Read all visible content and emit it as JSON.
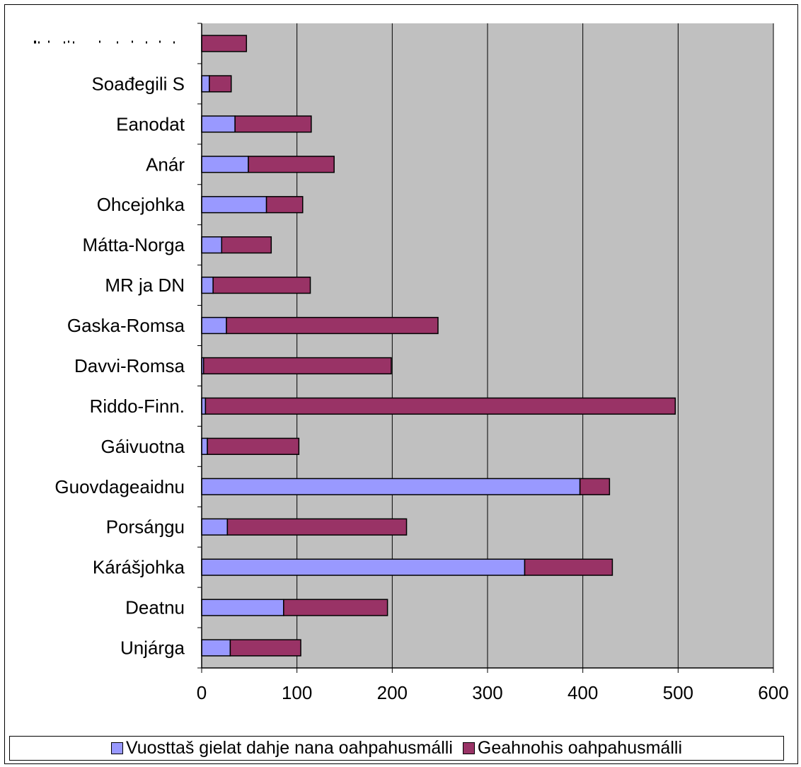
{
  "chart_data": {
    "type": "bar",
    "orientation": "horizontal",
    "stacked": true,
    "categories": [
      "Unjárga",
      "Deatnu",
      "Kárášjohka",
      "Porsáŋgu",
      "Guovdageaidnu",
      "Gáivuotna",
      "Riddo-Finn.",
      "Davvi-Romsa",
      "Gaska-Romsa",
      "MR ja DN",
      "Mátta-Norga",
      "Ohcejohka",
      "Anár",
      "Eanodat",
      "Soađegili S",
      ""
    ],
    "series": [
      {
        "name": "Vuosttaš gielat dahje nana oahpahusmálli",
        "color": "#9999ff",
        "values": [
          30,
          86,
          339,
          27,
          397,
          6,
          4,
          2,
          26,
          12,
          21,
          68,
          49,
          35,
          8,
          0
        ]
      },
      {
        "name": "Geahnohis oahpahusmálli",
        "color": "#993366",
        "values": [
          74,
          109,
          92,
          188,
          31,
          96,
          493,
          197,
          222,
          102,
          52,
          38,
          90,
          80,
          23,
          47
        ]
      }
    ],
    "xlim": [
      0,
      600
    ],
    "xticks": [
      0,
      100,
      200,
      300,
      400,
      500,
      600
    ],
    "xticklabels": [
      "0",
      "100",
      "200",
      "300",
      "400",
      "500",
      "600"
    ],
    "plot_background": "#c0c0c0",
    "grid": "vertical",
    "legend": "bottom"
  }
}
